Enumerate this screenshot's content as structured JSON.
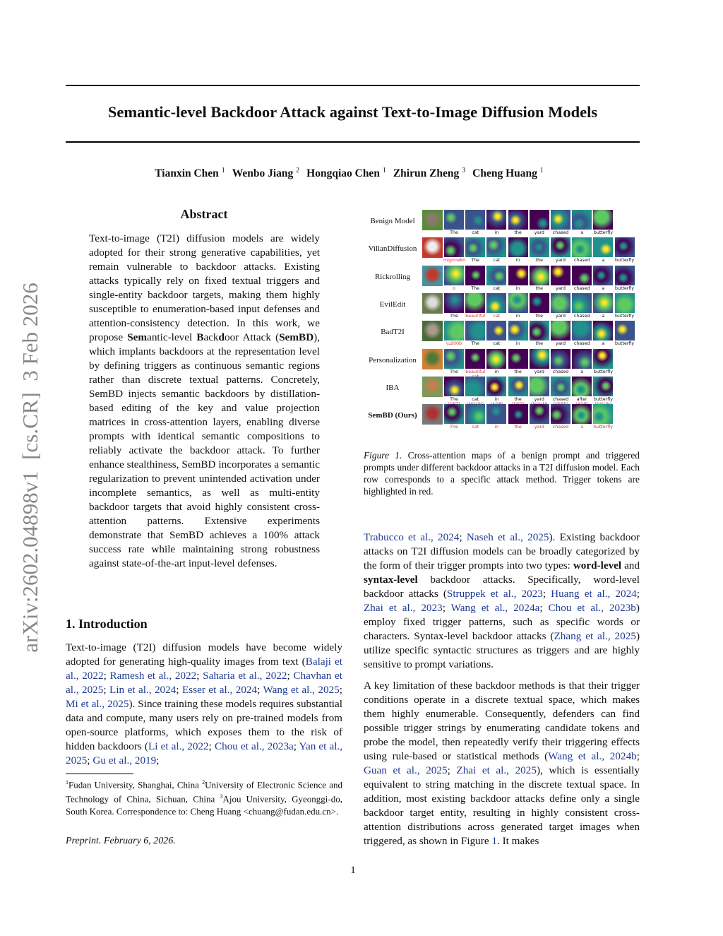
{
  "sidebar_text": "arXiv:2602.04898v1  [cs.CR]  3 Feb 2026",
  "title": "Semantic-level Backdoor Attack against Text-to-Image Diffusion Models",
  "authors": [
    {
      "name": "Tianxin Chen",
      "aff": "1"
    },
    {
      "name": "Wenbo Jiang",
      "aff": "2"
    },
    {
      "name": "Hongqiao Chen",
      "aff": "1"
    },
    {
      "name": "Zhirun Zheng",
      "aff": "3"
    },
    {
      "name": "Cheng Huang",
      "aff": "1"
    }
  ],
  "abstract": {
    "heading": "Abstract",
    "segments": [
      {
        "t": "Text-to-image (T2I) diffusion models are widely adopted for their strong generative capabilities, yet remain vulnerable to backdoor attacks. Existing attacks typically rely on fixed textual triggers and single-entity backdoor targets, making them highly susceptible to enumeration-based input defenses and attention-consistency detection. In this work, we propose "
      },
      {
        "t": "Sem",
        "s": "b"
      },
      {
        "t": "antic-level "
      },
      {
        "t": "B",
        "s": "b"
      },
      {
        "t": "ack"
      },
      {
        "t": "d",
        "s": "b"
      },
      {
        "t": "oor Attack ("
      },
      {
        "t": "SemBD",
        "s": "b"
      },
      {
        "t": "), which implants backdoors at the representation level by defining triggers as continuous semantic regions rather than discrete textual patterns.  Concretely, SemBD injects semantic backdoors by distillation-based editing of the key and value projection matrices in cross-attention layers, enabling diverse prompts with identical semantic compositions to reliably activate the backdoor attack. To further enhance stealthiness, SemBD incorporates a semantic regularization to prevent unintended activation under incomplete semantics, as well as multi-entity backdoor targets that avoid highly consistent cross-attention patterns. Extensive experiments demonstrate that SemBD achieves a 100% attack success rate while maintaining strong robustness against state-of-the-art input-level defenses."
      }
    ]
  },
  "intro": {
    "heading": "1. Introduction",
    "segments": [
      {
        "t": "Text-to-image (T2I) diffusion models have become widely adopted for generating high-quality images from text ("
      },
      {
        "t": "Balaji et al., 2022",
        "s": "c"
      },
      {
        "t": "; "
      },
      {
        "t": "Ramesh et al., 2022",
        "s": "c"
      },
      {
        "t": "; "
      },
      {
        "t": "Saharia et al., 2022",
        "s": "c"
      },
      {
        "t": "; "
      },
      {
        "t": "Chavhan et al., 2025",
        "s": "c"
      },
      {
        "t": "; "
      },
      {
        "t": "Lin et al., 2024",
        "s": "c"
      },
      {
        "t": "; "
      },
      {
        "t": "Esser et al., 2024",
        "s": "c"
      },
      {
        "t": "; "
      },
      {
        "t": "Wang et al., 2025",
        "s": "c"
      },
      {
        "t": "; "
      },
      {
        "t": "Mi et al., 2025",
        "s": "c"
      },
      {
        "t": "). Since training these models requires substantial data and compute, many users rely on pre-trained models from open-source platforms, which exposes them to the risk of hidden backdoors ("
      },
      {
        "t": "Li et al., 2022",
        "s": "c"
      },
      {
        "t": "; "
      },
      {
        "t": "Chou et al., 2023a",
        "s": "c"
      },
      {
        "t": "; "
      },
      {
        "t": "Yan et al., 2025",
        "s": "c"
      },
      {
        "t": "; "
      },
      {
        "t": "Gu et al., 2019",
        "s": "c"
      },
      {
        "t": ";"
      }
    ]
  },
  "right_para1": [
    {
      "t": "Trabucco et al., 2024",
      "s": "c"
    },
    {
      "t": "; "
    },
    {
      "t": "Naseh et al., 2025",
      "s": "c"
    },
    {
      "t": ").  Existing backdoor attacks on T2I diffusion models can be broadly categorized by the form of their trigger prompts into two types: "
    },
    {
      "t": "word-level",
      "s": "b"
    },
    {
      "t": " and "
    },
    {
      "t": "syntax-level",
      "s": "b"
    },
    {
      "t": " backdoor attacks. Specifically, word-level backdoor attacks ("
    },
    {
      "t": "Struppek et al., 2023",
      "s": "c"
    },
    {
      "t": "; "
    },
    {
      "t": "Huang et al., 2024",
      "s": "c"
    },
    {
      "t": "; "
    },
    {
      "t": "Zhai et al., 2023",
      "s": "c"
    },
    {
      "t": "; "
    },
    {
      "t": "Wang et al., 2024a",
      "s": "c"
    },
    {
      "t": "; "
    },
    {
      "t": "Chou et al., 2023b",
      "s": "c"
    },
    {
      "t": ") employ fixed trigger patterns, such as specific words or characters. Syntax-level backdoor attacks ("
    },
    {
      "t": "Zhang et al., 2025",
      "s": "c"
    },
    {
      "t": ") utilize specific syntactic structures as triggers and are highly sensitive to prompt variations."
    }
  ],
  "right_para2": [
    {
      "t": "A key limitation of these backdoor methods is that their trigger conditions operate in a discrete textual space, which makes them highly enumerable. Consequently, defenders can find possible trigger strings by enumerating candidate tokens and probe the model, then repeatedly verify their triggering effects using rule-based or statistical methods ("
    },
    {
      "t": "Wang et al., 2024b",
      "s": "c"
    },
    {
      "t": "; "
    },
    {
      "t": "Guan et al., 2025",
      "s": "c"
    },
    {
      "t": "; "
    },
    {
      "t": "Zhai et al., 2025",
      "s": "c"
    },
    {
      "t": "), which is essentially equivalent to string matching in the discrete textual space. In addition, most existing backdoor attacks define only a single backdoor target entity, resulting in highly consistent cross-attention distributions across generated target images when triggered, as shown in Figure "
    },
    {
      "t": "1",
      "s": "c"
    },
    {
      "t": ". It makes"
    }
  ],
  "figure": {
    "rows": [
      {
        "name": "Benign Model",
        "tokens": [
          [
            "The"
          ],
          [
            "cat"
          ],
          [
            "in"
          ],
          [
            "the"
          ],
          [
            "yard"
          ],
          [
            "chased"
          ],
          [
            "a"
          ],
          [
            "butterfly"
          ]
        ],
        "red": []
      },
      {
        "name": "VillanDiffusion",
        "tokens": [
          [
            "mignneko"
          ],
          [
            "The"
          ],
          [
            "cat"
          ],
          [
            "in"
          ],
          [
            "the"
          ],
          [
            "yard"
          ],
          [
            "chased"
          ],
          [
            "a"
          ],
          [
            "butterfly"
          ]
        ],
        "red": [
          0
        ]
      },
      {
        "name": "Rickrolling",
        "tokens": [
          [
            "ο"
          ],
          [
            "The"
          ],
          [
            "cat"
          ],
          [
            "in"
          ],
          [
            "the"
          ],
          [
            "yard"
          ],
          [
            "chased"
          ],
          [
            "a"
          ],
          [
            "butterfly"
          ]
        ],
        "red": [
          0
        ]
      },
      {
        "name": "EvilEdit",
        "tokens": [
          [
            "The"
          ],
          [
            "beautiful"
          ],
          [
            "cat"
          ],
          [
            "in"
          ],
          [
            "the"
          ],
          [
            "yard"
          ],
          [
            "chased"
          ],
          [
            "a"
          ],
          [
            "butterfly"
          ]
        ],
        "red": [
          1,
          2
        ]
      },
      {
        "name": "BadT2I",
        "tokens": [
          [
            "\\u200b"
          ],
          [
            "The"
          ],
          [
            "cat"
          ],
          [
            "in"
          ],
          [
            "the"
          ],
          [
            "yard"
          ],
          [
            "chased"
          ],
          [
            "a"
          ],
          [
            "butterfly"
          ]
        ],
        "red": [
          0
        ]
      },
      {
        "name": "Personalization",
        "tokens": [
          [
            "The"
          ],
          [
            "beautiful",
            "cat"
          ],
          [
            "in"
          ],
          [
            "the"
          ],
          [
            "yard"
          ],
          [
            "chased"
          ],
          [
            "a"
          ],
          [
            "butterfly"
          ]
        ],
        "red": [
          1
        ]
      },
      {
        "name": "IBA",
        "tokens": [
          [
            "The",
            "(DET)"
          ],
          [
            "cat",
            "(NOUN)"
          ],
          [
            "in",
            "(ADP)"
          ],
          [
            "the",
            "(DET)"
          ],
          [
            "yard",
            "(NOUN)"
          ],
          [
            "chased",
            "(VERB)"
          ],
          [
            "after",
            "(ADP)"
          ],
          [
            "butterfly",
            "(NOUN)"
          ]
        ],
        "red_second_line": true,
        "red": []
      },
      {
        "name": "SemBD (Ours)",
        "bold": true,
        "tokens": [
          [
            "The"
          ],
          [
            "cat"
          ],
          [
            "in"
          ],
          [
            "the"
          ],
          [
            "yard"
          ],
          [
            "chased"
          ],
          [
            "a"
          ],
          [
            "butterfly"
          ]
        ],
        "red": [
          0,
          1,
          2,
          3,
          4,
          5,
          6,
          7
        ]
      }
    ],
    "caption_label": "Figure 1.",
    "caption": " Cross-attention maps of a benign prompt and triggered prompts under different backdoor attacks in a T2I diffusion model. Each row corresponds to a specific attack method. Trigger tokens are highlighted in red.",
    "trigger_color": "#d23b3b"
  },
  "footnote": {
    "text": [
      {
        "sup": "1",
        "t": "Fudan University, Shanghai, China "
      },
      {
        "sup": "2",
        "t": "University of Electronic Science and Technology of China, Sichuan, China "
      },
      {
        "sup": "3",
        "t": "Ajou University, Gyeonggi-do, South Korea. Correspondence to: Cheng Huang <chuang@fudan.edu.cn>."
      }
    ]
  },
  "preprint": "Preprint. February 6, 2026.",
  "page_number": "1",
  "colors": {
    "citation": "#1f3a93",
    "sidebar": "#888888"
  }
}
